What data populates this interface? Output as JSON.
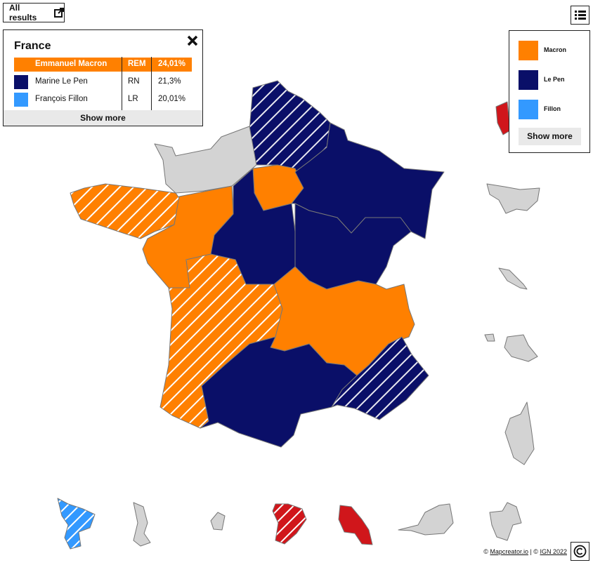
{
  "header": {
    "all_results": "All results"
  },
  "panel": {
    "title": "France",
    "rows": [
      {
        "candidate": "Emmanuel Macron",
        "party": "REM",
        "share": "24,01%",
        "color": "#ff8000"
      },
      {
        "candidate": "Marine Le Pen",
        "party": "RN",
        "share": "21,3%",
        "color": "#0a0f68"
      },
      {
        "candidate": "François Fillon",
        "party": "LR",
        "share": "20,01%",
        "color": "#3399ff"
      }
    ],
    "show_more": "Show more"
  },
  "legend": {
    "items": [
      {
        "label": "Macron",
        "color": "#ff8000"
      },
      {
        "label": "Le Pen",
        "color": "#0a0f68"
      },
      {
        "label": "Fillon",
        "color": "#3399ff"
      }
    ],
    "show_more": "Show more"
  },
  "footer": {
    "copyright": "©",
    "source": "Mapcreator.io",
    "separator": "| ©",
    "ign": "IGN 2022"
  }
}
